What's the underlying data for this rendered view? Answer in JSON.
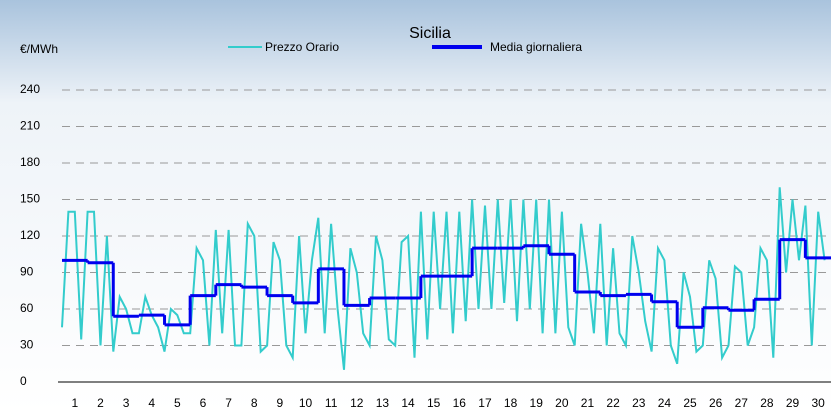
{
  "chart_data": {
    "type": "line",
    "title": "Sicilia",
    "y_label": "€/MWh",
    "categories": [
      1,
      2,
      3,
      4,
      5,
      6,
      7,
      8,
      9,
      10,
      11,
      12,
      13,
      14,
      15,
      16,
      17,
      18,
      19,
      20,
      21,
      22,
      23,
      24,
      25,
      26,
      27,
      28,
      29,
      30
    ],
    "xlim": [
      0.5,
      30.5
    ],
    "ylim": [
      0,
      240
    ],
    "yticks": [
      0,
      30,
      60,
      90,
      120,
      150,
      180,
      210,
      240
    ],
    "grid": true,
    "series": [
      {
        "name": "Prezzo Orario",
        "color": "#33cccc",
        "x": [
          0.5,
          0.75,
          1,
          1.25,
          1.5,
          1.75,
          2,
          2.25,
          2.5,
          2.75,
          3,
          3.25,
          3.5,
          3.75,
          4,
          4.25,
          4.5,
          4.75,
          5,
          5.25,
          5.5,
          5.75,
          6,
          6.25,
          6.5,
          6.75,
          7,
          7.25,
          7.5,
          7.75,
          8,
          8.25,
          8.5,
          8.75,
          9,
          9.25,
          9.5,
          9.75,
          10,
          10.25,
          10.5,
          10.75,
          11,
          11.25,
          11.5,
          11.75,
          12,
          12.25,
          12.5,
          12.75,
          13,
          13.25,
          13.5,
          13.75,
          14,
          14.25,
          14.5,
          14.75,
          15,
          15.25,
          15.5,
          15.75,
          16,
          16.25,
          16.5,
          16.75,
          17,
          17.25,
          17.5,
          17.75,
          18,
          18.25,
          18.5,
          18.75,
          19,
          19.25,
          19.5,
          19.75,
          20,
          20.25,
          20.5,
          20.75,
          21,
          21.25,
          21.5,
          21.75,
          22,
          22.25,
          22.5,
          22.75,
          23,
          23.25,
          23.5,
          23.75,
          24,
          24.25,
          24.5,
          24.75,
          25,
          25.25,
          25.5,
          25.75,
          26,
          26.25,
          26.5,
          26.75,
          27,
          27.25,
          27.5,
          27.75,
          28,
          28.25,
          28.5,
          28.75,
          29,
          29.25,
          29.5,
          29.75,
          30,
          30.25
        ],
        "values": [
          45,
          140,
          140,
          35,
          140,
          140,
          30,
          120,
          25,
          70,
          60,
          40,
          40,
          70,
          55,
          45,
          25,
          60,
          55,
          40,
          40,
          110,
          100,
          30,
          125,
          40,
          125,
          30,
          30,
          130,
          120,
          25,
          30,
          115,
          100,
          30,
          20,
          120,
          40,
          100,
          135,
          40,
          130,
          60,
          10,
          110,
          90,
          40,
          30,
          120,
          100,
          35,
          30,
          115,
          120,
          20,
          140,
          35,
          140,
          60,
          140,
          40,
          140,
          50,
          150,
          60,
          145,
          60,
          150,
          65,
          150,
          50,
          150,
          60,
          150,
          40,
          150,
          40,
          140,
          45,
          30,
          130,
          90,
          40,
          130,
          30,
          110,
          40,
          30,
          120,
          90,
          50,
          25,
          110,
          100,
          30,
          15,
          90,
          70,
          25,
          30,
          100,
          85,
          20,
          30,
          95,
          90,
          30,
          45,
          110,
          100,
          20,
          160,
          90,
          150,
          100,
          145,
          30,
          140,
          100
        ]
      },
      {
        "name": "Media giornaliera",
        "color": "#0000ee",
        "values": [
          100,
          98,
          54,
          55,
          47,
          71,
          80,
          78,
          71,
          65,
          93,
          63,
          69,
          69,
          87,
          87,
          110,
          110,
          112,
          105,
          74,
          71,
          72,
          66,
          45,
          61,
          59,
          68,
          117,
          102
        ]
      }
    ]
  }
}
